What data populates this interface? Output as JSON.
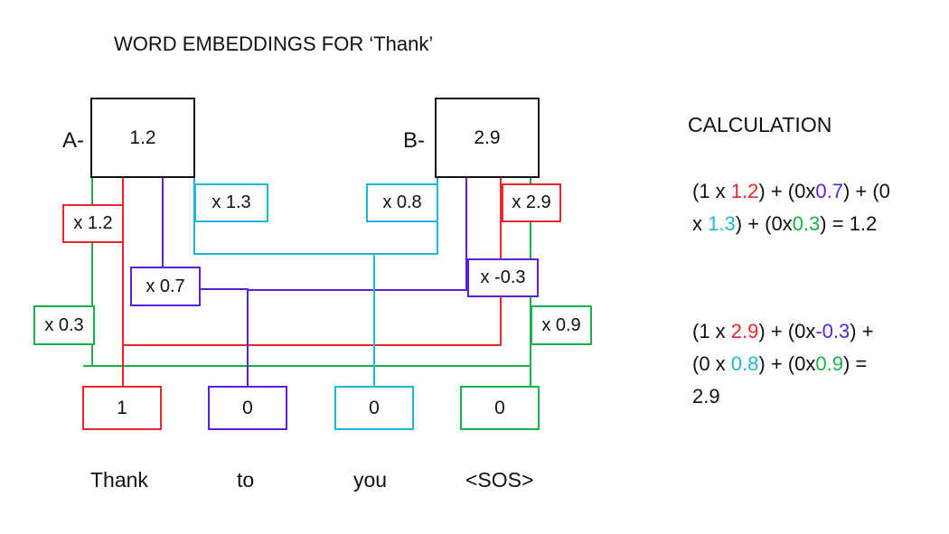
{
  "title": "WORD EMBEDDINGS FOR ‘Thank’",
  "colors": {
    "black": "#111111",
    "red": "#e8262b",
    "purple": "#5b21d6",
    "cyan": "#1fb7d6",
    "green": "#17b04c"
  },
  "nodes": {
    "a": {
      "label": "A-",
      "value": "1.2"
    },
    "b": {
      "label": "B-",
      "value": "2.9"
    }
  },
  "weights": {
    "a_thank": "x 1.2",
    "a_to": "x 0.7",
    "a_you": "x 1.3",
    "a_sos": "x 0.3",
    "b_you": "x 0.8",
    "b_thank": "x 2.9",
    "b_to": "x -0.3",
    "b_sos": "x 0.9"
  },
  "inputs": [
    {
      "value": "1",
      "word": "Thank",
      "color": "red"
    },
    {
      "value": "0",
      "word": "to",
      "color": "purple"
    },
    {
      "value": "0",
      "word": "you",
      "color": "cyan"
    },
    {
      "value": "0",
      "word": "<SOS>",
      "color": "green"
    }
  ],
  "calculation": {
    "heading": "CALCULATION",
    "eq1": {
      "line1": [
        {
          "t": "(1 x ",
          "c": "black"
        },
        {
          "t": "1.2",
          "c": "red"
        },
        {
          "t": ") + (0x",
          "c": "black"
        },
        {
          "t": "0.7",
          "c": "purple"
        },
        {
          "t": ") + (0",
          "c": "black"
        }
      ],
      "line2": [
        {
          "t": "x ",
          "c": "black"
        },
        {
          "t": "1.3",
          "c": "cyan"
        },
        {
          "t": ") + (0x",
          "c": "black"
        },
        {
          "t": "0.3",
          "c": "green"
        },
        {
          "t": ") = 1.2",
          "c": "black"
        }
      ]
    },
    "eq2": {
      "line1": [
        {
          "t": "(1 x ",
          "c": "black"
        },
        {
          "t": "2.9",
          "c": "red"
        },
        {
          "t": ") + (0x",
          "c": "black"
        },
        {
          "t": "-0.3",
          "c": "purple"
        },
        {
          "t": ") +",
          "c": "black"
        }
      ],
      "line2": [
        {
          "t": "(0 x ",
          "c": "black"
        },
        {
          "t": "0.8",
          "c": "cyan"
        },
        {
          "t": ") + (0x",
          "c": "black"
        },
        {
          "t": "0.9",
          "c": "green"
        },
        {
          "t": ") =",
          "c": "black"
        }
      ],
      "line3": [
        {
          "t": "2.9",
          "c": "black"
        }
      ]
    }
  }
}
